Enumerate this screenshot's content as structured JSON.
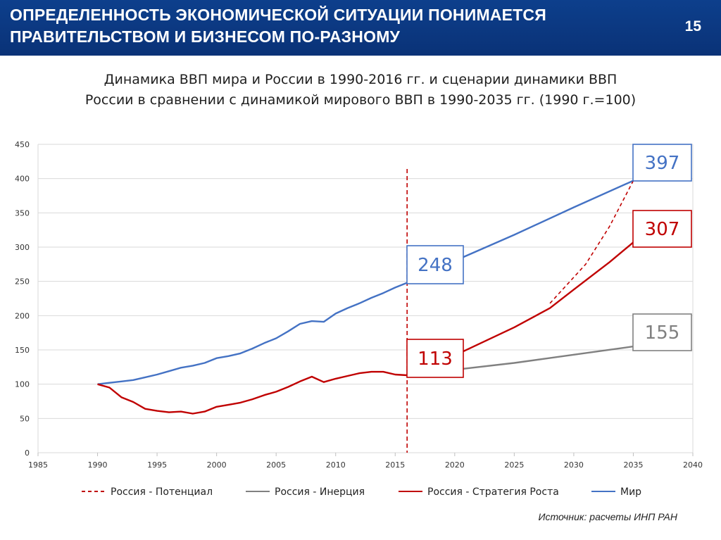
{
  "header": {
    "title_line1": "ОПРЕДЕЛЕННОСТЬ ЭКОНОМИЧЕСКОЙ СИТУАЦИИ ПОНИМАЕТСЯ",
    "title_line2": "ПРАВИТЕЛЬСТВОМ И БИЗНЕСОМ ПО-РАЗНОМУ",
    "page_number": "15"
  },
  "source": "Источник: расчеты ИНП РАН",
  "chart_data": {
    "type": "line",
    "title_line1": "Динамика ВВП мира и России в 1990-2016 гг. и сценарии динамики ВВП",
    "title_line2": "России в сравнении с динамикой мирового ВВП в 1990-2035 гг. (1990 г.=100)",
    "xlim": [
      1985,
      2040
    ],
    "ylim": [
      0,
      450
    ],
    "x_ticks": [
      1985,
      1990,
      1995,
      2000,
      2005,
      2010,
      2015,
      2020,
      2025,
      2030,
      2035,
      2040
    ],
    "y_ticks": [
      0,
      50,
      100,
      150,
      200,
      250,
      300,
      350,
      400,
      450
    ],
    "grid": "horizontal",
    "legend_position": "bottom",
    "vertical_marker": {
      "x": 2016,
      "color": "#c00000",
      "style": "dashed"
    },
    "series": [
      {
        "name": "Мир",
        "color": "#4472c4",
        "style": "solid",
        "x": [
          1990,
          1991,
          1992,
          1993,
          1994,
          1995,
          1996,
          1997,
          1998,
          1999,
          2000,
          2001,
          2002,
          2003,
          2004,
          2005,
          2006,
          2007,
          2008,
          2009,
          2010,
          2011,
          2012,
          2013,
          2014,
          2015,
          2016,
          2020,
          2025,
          2030,
          2035
        ],
        "y": [
          100,
          102,
          104,
          106,
          110,
          114,
          119,
          124,
          127,
          131,
          138,
          141,
          145,
          152,
          160,
          167,
          177,
          188,
          192,
          191,
          203,
          211,
          218,
          226,
          233,
          241,
          248,
          280,
          318,
          358,
          397
        ]
      },
      {
        "name": "Россия - Стратегия Роста",
        "color": "#c00000",
        "style": "solid",
        "x": [
          1990,
          1991,
          1992,
          1993,
          1994,
          1995,
          1996,
          1997,
          1998,
          1999,
          2000,
          2001,
          2002,
          2003,
          2004,
          2005,
          2006,
          2007,
          2008,
          2009,
          2010,
          2011,
          2012,
          2013,
          2014,
          2015,
          2016,
          2020,
          2025,
          2028,
          2030,
          2033,
          2035
        ],
        "y": [
          100,
          95,
          81,
          74,
          64,
          61,
          59,
          60,
          57,
          60,
          67,
          70,
          73,
          78,
          84,
          89,
          96,
          104,
          111,
          103,
          108,
          112,
          116,
          118,
          118,
          114,
          113,
          142,
          183,
          211,
          238,
          278,
          307
        ]
      },
      {
        "name": "Россия - Инерция",
        "color": "#808080",
        "style": "solid",
        "x": [
          2016,
          2020,
          2025,
          2030,
          2035
        ],
        "y": [
          113,
          121,
          131,
          143,
          155
        ]
      },
      {
        "name": "Россия - Потенциал",
        "color": "#c00000",
        "style": "dashed",
        "x": [
          2028,
          2031,
          2033,
          2035
        ],
        "y": [
          218,
          275,
          330,
          397
        ]
      }
    ],
    "callouts": [
      {
        "label": "248",
        "series": "Мир",
        "x": 2016,
        "y": 248,
        "color": "#4472c4"
      },
      {
        "label": "113",
        "series": "Россия - Стратегия Роста",
        "x": 2016,
        "y": 113,
        "color": "#c00000"
      },
      {
        "label": "397",
        "series": "Мир",
        "x": 2035,
        "y": 397,
        "color": "#4472c4"
      },
      {
        "label": "307",
        "series": "Россия - Стратегия Роста",
        "x": 2035,
        "y": 307,
        "color": "#c00000"
      },
      {
        "label": "155",
        "series": "Россия - Инерция",
        "x": 2035,
        "y": 155,
        "color": "#808080"
      }
    ],
    "legend": [
      {
        "label": "Россия - Потенциал",
        "color": "#c00000",
        "style": "dashed"
      },
      {
        "label": "Россия - Инерция",
        "color": "#808080",
        "style": "solid"
      },
      {
        "label": "Россия - Стратегия Роста",
        "color": "#c00000",
        "style": "solid"
      },
      {
        "label": "Мир",
        "color": "#4472c4",
        "style": "solid"
      }
    ]
  }
}
